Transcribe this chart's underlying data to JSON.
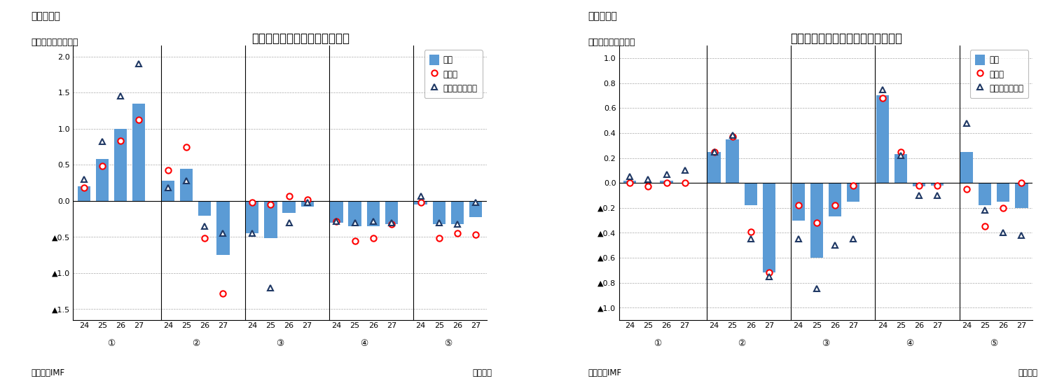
{
  "chart1": {
    "title": "代替シナリオの成長率への影響",
    "subtitle_left": "（図表５）",
    "ylabel": "（ベースライン比）",
    "source": "（資料）IMF",
    "year_label": "（年次）",
    "ylim": [
      -1.65,
      2.15
    ],
    "yticks": [
      -1.5,
      -1.0,
      -0.5,
      0.0,
      0.5,
      1.0,
      1.5,
      2.0
    ],
    "ytick_labels": [
      "▲1.5",
      "▲1.0",
      "▲0.5",
      "0.0",
      "0.5",
      "1.0",
      "1.5",
      "2.0"
    ],
    "groups": [
      "①",
      "②",
      "③",
      "④",
      "⑤"
    ],
    "years": [
      "24",
      "25",
      "26",
      "27"
    ],
    "bar_values": [
      [
        0.2,
        0.58,
        1.0,
        1.35
      ],
      [
        0.28,
        0.45,
        -0.2,
        -0.75
      ],
      [
        -0.45,
        -0.52,
        -0.17,
        -0.08
      ],
      [
        -0.3,
        -0.35,
        -0.35,
        -0.32
      ],
      [
        -0.05,
        -0.32,
        -0.32,
        -0.22
      ]
    ],
    "circle_values": [
      [
        0.18,
        0.48,
        0.83,
        1.12
      ],
      [
        0.43,
        0.75,
        -0.52,
        -1.28
      ],
      [
        -0.02,
        -0.05,
        0.07,
        0.02
      ],
      [
        -0.28,
        -0.55,
        -0.52,
        -0.32
      ],
      [
        -0.02,
        -0.52,
        -0.45,
        -0.47
      ]
    ],
    "triangle_values": [
      [
        0.3,
        0.82,
        1.45,
        1.9
      ],
      [
        0.18,
        0.28,
        -0.35,
        -0.45
      ],
      [
        -0.45,
        -1.2,
        -0.3,
        -0.02
      ],
      [
        -0.28,
        -0.3,
        -0.28,
        -0.3
      ],
      [
        0.07,
        -0.3,
        -0.32,
        -0.02
      ]
    ]
  },
  "chart2": {
    "title": "代替シナリオのインフレ率への影響",
    "subtitle_left": "（図表６）",
    "ylabel": "（ベースライン比）",
    "source": "（資料）IMF",
    "year_label": "（年次）",
    "ylim": [
      -1.1,
      1.1
    ],
    "yticks": [
      -1.0,
      -0.8,
      -0.6,
      -0.4,
      -0.2,
      0.0,
      0.2,
      0.4,
      0.6,
      0.8,
      1.0
    ],
    "ytick_labels": [
      "▲1.0",
      "▲0.8",
      "▲0.6",
      "▲0.4",
      "▲0.2",
      "0.0",
      "0.2",
      "0.4",
      "0.6",
      "0.8",
      "1.0"
    ],
    "groups": [
      "①",
      "②",
      "③",
      "④",
      "⑤"
    ],
    "years": [
      "24",
      "25",
      "26",
      "27"
    ],
    "bar_values": [
      [
        0.02,
        0.0,
        0.02,
        0.0
      ],
      [
        0.25,
        0.35,
        -0.18,
        -0.72
      ],
      [
        -0.3,
        -0.6,
        -0.27,
        -0.15
      ],
      [
        0.7,
        0.23,
        -0.03,
        -0.02
      ],
      [
        0.25,
        -0.18,
        -0.15,
        -0.2
      ]
    ],
    "circle_values": [
      [
        0.0,
        -0.03,
        0.0,
        0.0
      ],
      [
        0.25,
        0.37,
        -0.39,
        -0.72
      ],
      [
        -0.18,
        -0.32,
        -0.18,
        -0.02
      ],
      [
        0.68,
        0.25,
        -0.02,
        -0.02
      ],
      [
        -0.05,
        -0.35,
        -0.2,
        0.0
      ]
    ],
    "triangle_values": [
      [
        0.05,
        0.03,
        0.07,
        0.1
      ],
      [
        0.25,
        0.38,
        -0.45,
        -0.75
      ],
      [
        -0.45,
        -0.85,
        -0.5,
        -0.45
      ],
      [
        0.75,
        0.22,
        -0.1,
        -0.1
      ],
      [
        0.48,
        -0.22,
        -0.4,
        -0.42
      ]
    ]
  },
  "bar_color": "#5B9BD5",
  "circle_color": "#FF0000",
  "triangle_color": "#1F3864",
  "legend_labels": [
    "世界",
    "先進国",
    "新興国・途上国"
  ],
  "background_color": "#FFFFFF"
}
